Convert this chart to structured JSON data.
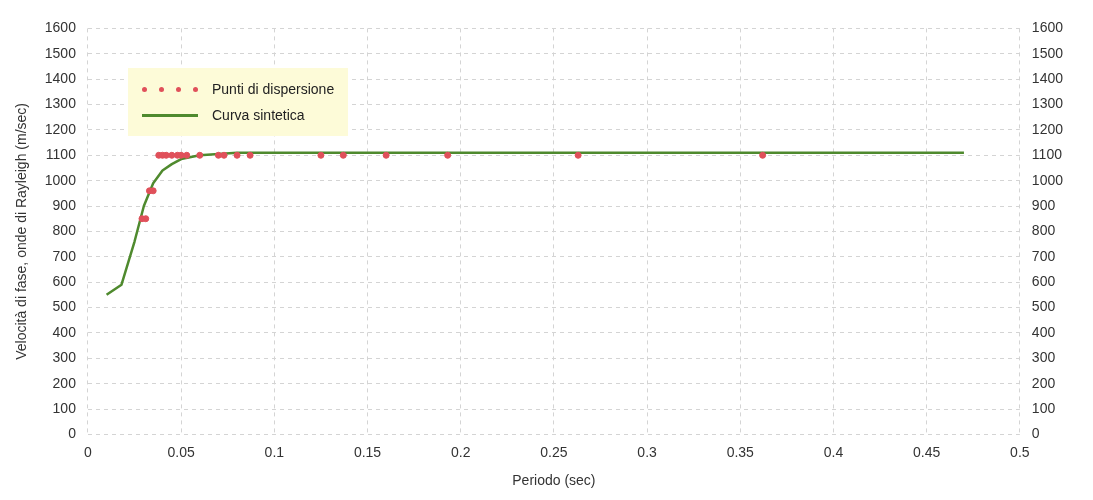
{
  "chart_data": {
    "type": "scatter",
    "xlabel": "Periodo (sec)",
    "ylabel": "Velocità di fase, onde di Rayleigh (m/sec)",
    "series": [
      {
        "name": "Punti di dispersione",
        "type": "scatter",
        "color": "#e0505a",
        "marker": "circle",
        "x": [
          0.029,
          0.031,
          0.033,
          0.035,
          0.038,
          0.04,
          0.042,
          0.045,
          0.048,
          0.05,
          0.053,
          0.06,
          0.07,
          0.073,
          0.08,
          0.087,
          0.125,
          0.137,
          0.16,
          0.193,
          0.263,
          0.362
        ],
        "values": [
          850,
          850,
          960,
          960,
          1100,
          1100,
          1100,
          1100,
          1100,
          1100,
          1100,
          1100,
          1100,
          1100,
          1100,
          1100,
          1100,
          1100,
          1100,
          1100,
          1100,
          1100
        ]
      },
      {
        "name": "Curva sintetica",
        "type": "line",
        "color": "#4f8a2e",
        "marker": "none",
        "x": [
          0.01,
          0.018,
          0.025,
          0.03,
          0.035,
          0.04,
          0.045,
          0.05,
          0.06,
          0.08,
          0.47
        ],
        "values": [
          550,
          590,
          760,
          900,
          990,
          1040,
          1065,
          1085,
          1100,
          1110,
          1110
        ]
      }
    ],
    "xlim": [
      0,
      0.5
    ],
    "xticks": [
      0,
      0.05,
      0.1,
      0.15,
      0.2,
      0.25,
      0.3,
      0.35,
      0.4,
      0.45,
      0.5
    ],
    "ylim": [
      0,
      1600
    ],
    "yticks": [
      0,
      100,
      200,
      300,
      400,
      500,
      600,
      700,
      800,
      900,
      1000,
      1100,
      1200,
      1300,
      1400,
      1500,
      1600
    ],
    "y2lim": [
      0,
      1600
    ],
    "y2ticks": [
      0,
      100,
      200,
      300,
      400,
      500,
      600,
      700,
      800,
      900,
      1000,
      1100,
      1200,
      1300,
      1400,
      1500,
      1600
    ],
    "grid": true,
    "legend": "top left"
  }
}
